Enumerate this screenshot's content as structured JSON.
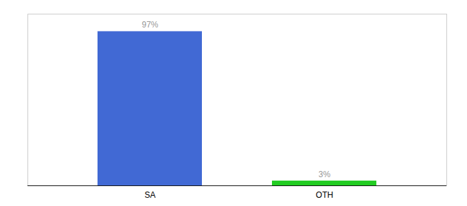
{
  "chart_data": {
    "type": "bar",
    "categories": [
      "SA",
      "OTH"
    ],
    "values": [
      97,
      3
    ],
    "value_labels": [
      "97%",
      "3%"
    ],
    "colors": [
      "#4169d4",
      "#22cc22"
    ],
    "ylim": [
      0,
      108
    ],
    "data_labels": true,
    "tick_labels": "x"
  }
}
